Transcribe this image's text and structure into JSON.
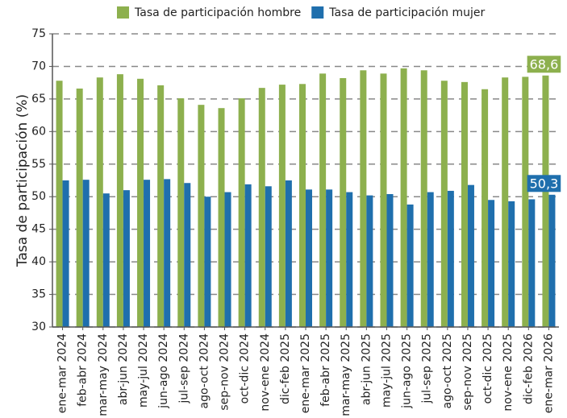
{
  "chart_data": {
    "type": "bar",
    "y_label": "Tasa de participación (%)",
    "categories": [
      "ene-mar 2024",
      "feb-abr 2024",
      "mar-may 2024",
      "abr-jun 2024",
      "may-jul 2024",
      "jun-ago 2024",
      "jul-sep 2024",
      "ago-oct 2024",
      "sep-nov 2024",
      "oct-dic 2024",
      "nov-ene 2024",
      "dic-feb 2025",
      "ene-mar 2025",
      "feb-abr 2025",
      "mar-may 2025",
      "abr-jun 2025",
      "may-jul 2025",
      "jun-ago 2025",
      "jul-sep 2025",
      "ago-oct 2025",
      "sep-nov 2025",
      "oct-dic 2025",
      "nov-ene 2025",
      "dic-feb 2026",
      "ene-mar 2026"
    ],
    "series": [
      {
        "name": "Tasa de participación hombre",
        "color": "#8db04e",
        "values": [
          67.8,
          66.6,
          68.3,
          68.8,
          68.1,
          67.1,
          65.1,
          64.1,
          63.6,
          65.1,
          66.7,
          67.2,
          67.3,
          68.9,
          68.2,
          69.4,
          68.9,
          69.7,
          69.4,
          67.8,
          67.6,
          66.5,
          68.3,
          68.4,
          68.6
        ],
        "value_labels": [
          null,
          null,
          null,
          null,
          null,
          null,
          null,
          null,
          null,
          null,
          null,
          null,
          null,
          null,
          null,
          null,
          null,
          null,
          null,
          null,
          null,
          null,
          null,
          null,
          "68,6"
        ]
      },
      {
        "name": "Tasa de participación mujer",
        "color": "#1f6fad",
        "values": [
          52.5,
          52.6,
          50.5,
          51.0,
          52.6,
          52.7,
          52.1,
          50.0,
          50.7,
          51.9,
          51.6,
          52.5,
          51.1,
          51.1,
          50.7,
          50.2,
          50.4,
          48.8,
          50.7,
          50.9,
          51.8,
          49.5,
          49.3,
          49.6,
          50.3
        ],
        "value_labels": [
          null,
          null,
          null,
          null,
          null,
          null,
          null,
          null,
          null,
          null,
          null,
          null,
          null,
          null,
          null,
          null,
          null,
          null,
          null,
          null,
          null,
          null,
          null,
          null,
          "50,3"
        ]
      }
    ],
    "ylim": [
      30,
      75
    ],
    "yticks": [
      30,
      35,
      40,
      45,
      50,
      55,
      60,
      65,
      70,
      75
    ],
    "grid": true,
    "legend": "top"
  }
}
